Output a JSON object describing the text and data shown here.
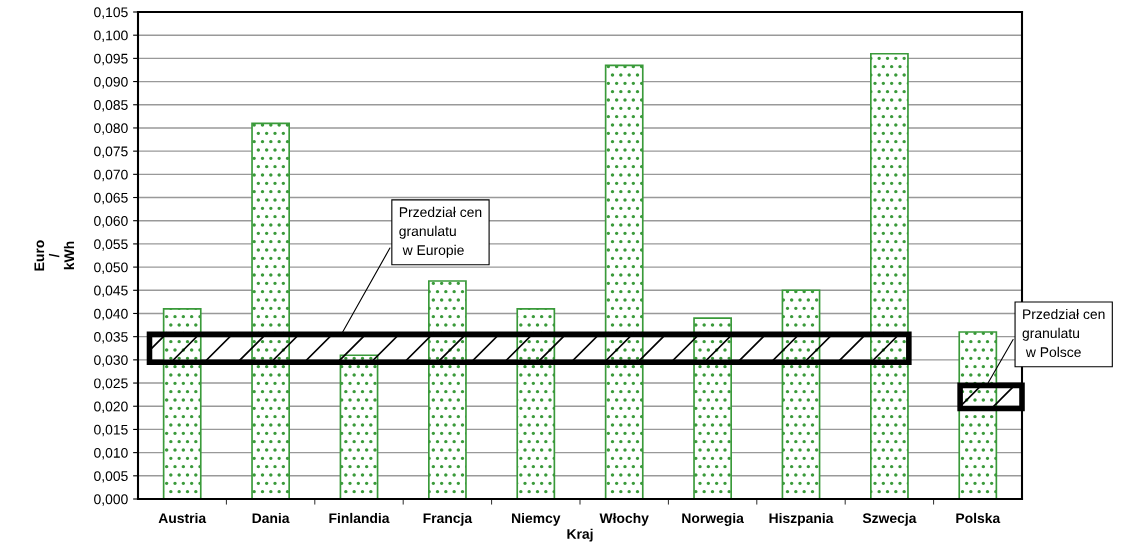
{
  "chart_data": {
    "type": "bar",
    "xlabel": "Kraj",
    "ylabel": "Euro\n/\nkWh",
    "categories": [
      "Austria",
      "Dania",
      "Finlandia",
      "Francja",
      "Niemcy",
      "Włochy",
      "Norwegia",
      "Hiszpania",
      "Szwecja",
      "Polska"
    ],
    "values": [
      0.041,
      0.081,
      0.031,
      0.047,
      0.041,
      0.0935,
      0.039,
      0.045,
      0.096,
      0.036
    ],
    "color": "#3a9a3a",
    "ylim": [
      0,
      0.105
    ],
    "yticks": [
      {
        "value": 0,
        "label": "0,000"
      },
      {
        "value": 0.005,
        "label": "0,005"
      },
      {
        "value": 0.01,
        "label": "0,010"
      },
      {
        "value": 0.015,
        "label": "0,015"
      },
      {
        "value": 0.02,
        "label": "0,020"
      },
      {
        "value": 0.025,
        "label": "0,025"
      },
      {
        "value": 0.03,
        "label": "0,030"
      },
      {
        "value": 0.035,
        "label": "0,035"
      },
      {
        "value": 0.04,
        "label": "0,040"
      },
      {
        "value": 0.045,
        "label": "0,045"
      },
      {
        "value": 0.05,
        "label": "0,050"
      },
      {
        "value": 0.055,
        "label": "0,055"
      },
      {
        "value": 0.06,
        "label": "0,060"
      },
      {
        "value": 0.065,
        "label": "0,065"
      },
      {
        "value": 0.07,
        "label": "0,070"
      },
      {
        "value": 0.075,
        "label": "0,075"
      },
      {
        "value": 0.08,
        "label": "0,080"
      },
      {
        "value": 0.085,
        "label": "0,085"
      },
      {
        "value": 0.09,
        "label": "0,090"
      },
      {
        "value": 0.095,
        "label": "0,095"
      },
      {
        "value": 0.1,
        "label": "0,100"
      },
      {
        "value": 0.105,
        "label": "0,105"
      }
    ],
    "grid": "y",
    "bands": [
      {
        "axis": "y",
        "from": 0.0295,
        "to": 0.0355,
        "label": "Przedział cen\ngranulatu\n w Europie",
        "color": "#000000"
      },
      {
        "axis": "y",
        "from": 0.0195,
        "to": 0.0245,
        "label": "Przedział cen\ngranulatu\n w Polsce",
        "color": "#000000"
      }
    ]
  }
}
